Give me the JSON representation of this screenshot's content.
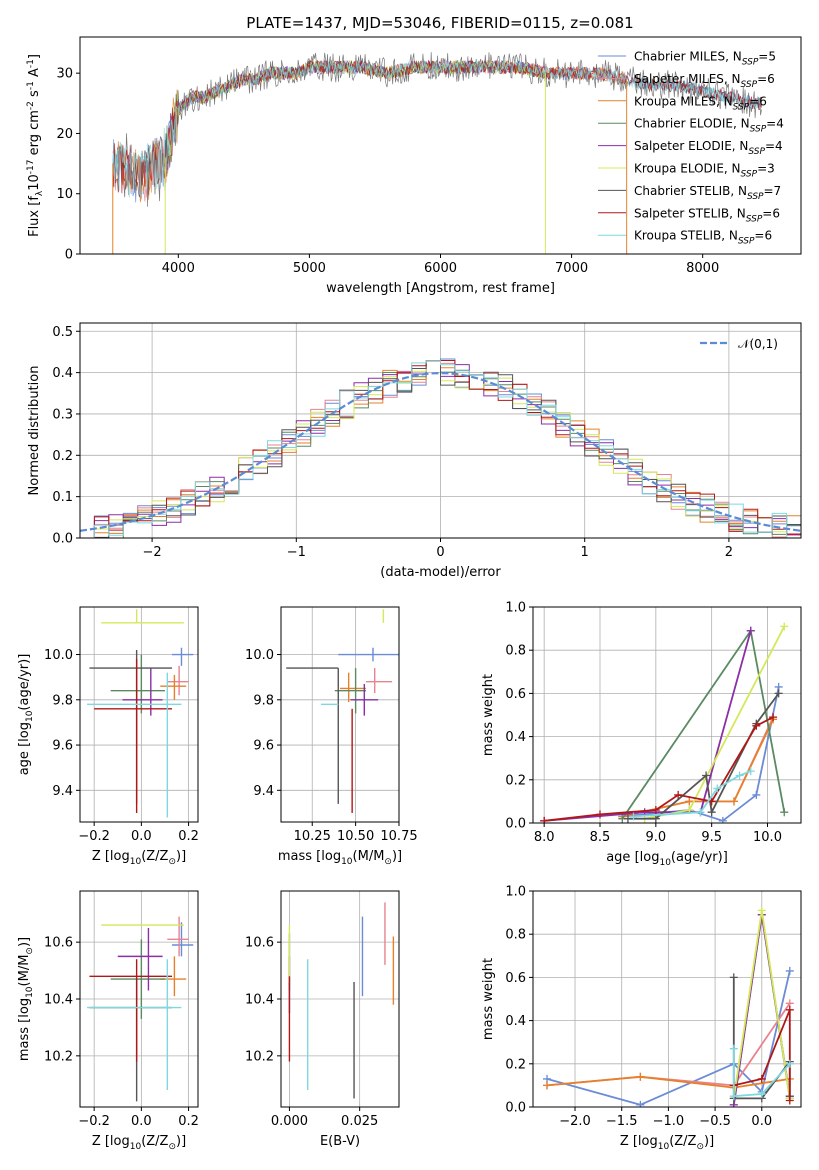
{
  "figure": {
    "title": "PLATE=1437, MJD=53046, FIBERID=0115, z=0.081"
  },
  "colors": {
    "Chabrier MILES": "#6a8bd6",
    "Salpeter MILES": "#e8838f",
    "Kroupa MILES": "#e6802a",
    "Chabrier ELODIE": "#5b8a62",
    "Salpeter ELODIE": "#8b2fa6",
    "Kroupa ELODIE": "#d4e85a",
    "Chabrier STELIB": "#555555",
    "Salpeter STELIB": "#b01818",
    "Kroupa STELIB": "#7fd8e0",
    "normal": "#5b8ad6",
    "data": "#7a7a7a"
  },
  "chart_data": [
    {
      "id": "spectrum",
      "type": "line",
      "xlabel": "wavelength [Angstrom, rest frame]",
      "ylabel": "Flux [f$_\\lambda$10$^{-17}$ erg cm$^{-2}$ s$^{-1}$ A$^{-1}$]",
      "xlim": [
        3250,
        8750
      ],
      "ylim": [
        0,
        36
      ],
      "xticks": [
        4000,
        5000,
        6000,
        7000,
        8000
      ],
      "yticks": [
        0,
        10,
        20,
        30
      ],
      "legend_position": "top-right",
      "legend": [
        {
          "model": "Chabrier MILES",
          "n_ssp": 5
        },
        {
          "model": "Salpeter MILES",
          "n_ssp": 6
        },
        {
          "model": "Kroupa MILES",
          "n_ssp": 6
        },
        {
          "model": "Chabrier ELODIE",
          "n_ssp": 4
        },
        {
          "model": "Salpeter ELODIE",
          "n_ssp": 4
        },
        {
          "model": "Kroupa ELODIE",
          "n_ssp": 3
        },
        {
          "model": "Chabrier STELIB",
          "n_ssp": 7
        },
        {
          "model": "Salpeter STELIB",
          "n_ssp": 6
        },
        {
          "model": "Kroupa STELIB",
          "n_ssp": 6
        }
      ],
      "continuum": {
        "x": [
          3500,
          3600,
          3700,
          3800,
          3900,
          4000,
          4100,
          4200,
          4300,
          4400,
          4500,
          4600,
          4700,
          4800,
          4900,
          5000,
          5200,
          5400,
          5600,
          5800,
          6000,
          6200,
          6400,
          6600,
          6800,
          7000,
          7200,
          7400,
          7600,
          7800,
          8000,
          8200,
          8400
        ],
        "y": [
          15,
          14,
          13,
          14,
          16,
          24,
          26,
          26,
          27,
          28,
          29,
          29,
          30,
          30,
          30,
          31,
          31,
          31,
          30,
          31,
          31,
          31,
          31,
          31,
          30,
          30,
          30,
          29,
          28,
          28,
          27,
          26,
          25
        ]
      },
      "model_ranges": {
        "Salpeter MILES": [
          3500,
          7420
        ],
        "Kroupa MILES": [
          3500,
          7420
        ],
        "Kroupa ELODIE": [
          3900,
          6800
        ],
        "Salpeter ELODIE": [
          3900,
          6800
        ],
        "Chabrier ELODIE": [
          3900,
          6800
        ]
      }
    },
    {
      "id": "residuals",
      "type": "line",
      "xlabel": "(data-model)/error",
      "ylabel": "Normed distribution",
      "xlim": [
        -2.5,
        2.5
      ],
      "ylim": [
        0,
        0.52
      ],
      "xticks": [
        -2,
        -1,
        0,
        1,
        2
      ],
      "yticks": [
        0.0,
        0.1,
        0.2,
        0.3,
        0.4,
        0.5
      ],
      "grid": true,
      "legend_position": "top-right",
      "legend": [
        "$\\mathcal{N}(0,1)$"
      ],
      "bin_width": 0.1
    },
    {
      "id": "age_vs_Z",
      "type": "errorbar",
      "xlabel": "Z [log$_{10}$(Z/Z$_\\odot$)]",
      "ylabel": "age  [log$_{10}$(age/yr)]",
      "xlim": [
        -0.26,
        0.24
      ],
      "ylim": [
        9.26,
        10.21
      ],
      "xticks": [
        -0.2,
        0.0,
        0.2
      ],
      "yticks": [
        9.4,
        9.6,
        9.8,
        10.0
      ],
      "grid": true,
      "points": [
        {
          "model": "Chabrier MILES",
          "x": 0.17,
          "xerr": [
            0.04,
            0.05
          ],
          "y": 10.0,
          "yerr": [
            0.05,
            0.03
          ]
        },
        {
          "model": "Salpeter MILES",
          "x": 0.16,
          "xerr": [
            0.05,
            0.04
          ],
          "y": 9.88,
          "yerr": [
            0.06,
            0.07
          ]
        },
        {
          "model": "Kroupa MILES",
          "x": 0.14,
          "xerr": [
            0.06,
            0.05
          ],
          "y": 9.86,
          "yerr": [
            0.06,
            0.05
          ]
        },
        {
          "model": "Chabrier ELODIE",
          "x": 0.0,
          "xerr": [
            0.13,
            0.1
          ],
          "y": 9.84,
          "yerr": [
            0.1,
            0.16
          ]
        },
        {
          "model": "Salpeter ELODIE",
          "x": 0.04,
          "xerr": [
            0.12,
            0.05
          ],
          "y": 9.8,
          "yerr": [
            0.07,
            0.14
          ]
        },
        {
          "model": "Kroupa ELODIE",
          "x": -0.02,
          "xerr": [
            0.15,
            0.2
          ],
          "y": 10.14,
          "yerr": [
            0.0,
            0.06
          ]
        },
        {
          "model": "Chabrier STELIB",
          "x": -0.02,
          "xerr": [
            0.2,
            0.15
          ],
          "y": 9.94,
          "yerr": [
            0.6,
            0.08
          ]
        },
        {
          "model": "Salpeter STELIB",
          "x": -0.02,
          "xerr": [
            0.18,
            0.15
          ],
          "y": 9.76,
          "yerr": [
            0.46,
            0.22
          ]
        },
        {
          "model": "Kroupa STELIB",
          "x": 0.11,
          "xerr": [
            0.34,
            0.06
          ],
          "y": 9.78,
          "yerr": [
            0.5,
            0.14
          ]
        }
      ]
    },
    {
      "id": "age_vs_mass",
      "type": "errorbar",
      "xlabel": "mass [log$_{10}$(M/M$_\\odot$)]",
      "ylabel": "",
      "xlim": [
        10.07,
        10.75
      ],
      "ylim": [
        9.26,
        10.21
      ],
      "xticks": [
        10.25,
        10.5,
        10.75
      ],
      "yticks": [
        9.4,
        9.6,
        9.8,
        10.0
      ],
      "grid": true,
      "points": [
        {
          "model": "Chabrier MILES",
          "x": 10.6,
          "xerr": [
            0.2,
            0.2
          ],
          "y": 10.0,
          "yerr": [
            0.03,
            0.03
          ]
        },
        {
          "model": "Salpeter MILES",
          "x": 10.61,
          "xerr": [
            0.05,
            0.1
          ],
          "y": 9.88,
          "yerr": [
            0.05,
            0.06
          ]
        },
        {
          "model": "Kroupa MILES",
          "x": 10.46,
          "xerr": [
            0.05,
            0.1
          ],
          "y": 9.85,
          "yerr": [
            0.06,
            0.07
          ]
        },
        {
          "model": "Chabrier ELODIE",
          "x": 10.5,
          "xerr": [
            0.12,
            0.06
          ],
          "y": 9.84,
          "yerr": [
            0.1,
            0.1
          ]
        },
        {
          "model": "Salpeter ELODIE",
          "x": 10.55,
          "xerr": [
            0.08,
            0.08
          ],
          "y": 9.8,
          "yerr": [
            0.07,
            0.07
          ]
        },
        {
          "model": "Kroupa ELODIE",
          "x": 10.66,
          "xerr": [
            0.0,
            0.0
          ],
          "y": 10.14,
          "yerr": [
            0.0,
            0.06
          ]
        },
        {
          "model": "Chabrier STELIB",
          "x": 10.4,
          "xerr": [
            0.3,
            0.0
          ],
          "y": 9.94,
          "yerr": [
            0.6,
            0.0
          ]
        },
        {
          "model": "Salpeter STELIB",
          "x": 10.48,
          "xerr": [
            0.0,
            0.0
          ],
          "y": 9.76,
          "yerr": [
            0.46,
            0.0
          ]
        },
        {
          "model": "Kroupa STELIB",
          "x": 10.3,
          "xerr": [
            0.0,
            0.1
          ],
          "y": 9.78,
          "yerr": [
            0.0,
            0.0
          ]
        }
      ]
    },
    {
      "id": "mass_weight_vs_age",
      "type": "line",
      "xlabel": "age  [log$_{10}$(age/yr)]",
      "ylabel": "mass weight",
      "xlim": [
        7.9,
        10.3
      ],
      "ylim": [
        0,
        1.0
      ],
      "xticks": [
        8.0,
        8.5,
        9.0,
        9.5,
        10.0
      ],
      "yticks": [
        0.0,
        0.2,
        0.4,
        0.6,
        0.8,
        1.0
      ],
      "grid": true,
      "series": [
        {
          "model": "Chabrier MILES",
          "x": [
            8.7,
            9.3,
            9.6,
            9.9,
            10.1
          ],
          "y": [
            0.03,
            0.06,
            0.01,
            0.13,
            0.63
          ]
        },
        {
          "model": "Salpeter MILES",
          "x": [
            8.7,
            9.3,
            9.7,
            10.05
          ],
          "y": [
            0.03,
            0.1,
            0.1,
            0.49
          ]
        },
        {
          "model": "Kroupa MILES",
          "x": [
            8.7,
            9.3,
            9.7,
            10.05
          ],
          "y": [
            0.03,
            0.1,
            0.1,
            0.48
          ]
        },
        {
          "model": "Chabrier ELODIE",
          "x": [
            8.7,
            9.85,
            10.15
          ],
          "y": [
            0.02,
            0.89,
            0.05
          ]
        },
        {
          "model": "Salpeter ELODIE",
          "x": [
            8.0,
            8.9,
            9.4,
            9.85
          ],
          "y": [
            0.01,
            0.05,
            0.05,
            0.89
          ]
        },
        {
          "model": "Kroupa ELODIE",
          "x": [
            8.9,
            9.3,
            10.15
          ],
          "y": [
            0.02,
            0.06,
            0.91
          ]
        },
        {
          "model": "Chabrier STELIB",
          "x": [
            8.75,
            9.0,
            9.45,
            9.5,
            9.9,
            10.1
          ],
          "y": [
            0.02,
            0.02,
            0.22,
            0.05,
            0.46,
            0.6
          ]
        },
        {
          "model": "Salpeter STELIB",
          "x": [
            8.0,
            8.5,
            9.0,
            9.2,
            9.5,
            9.9,
            10.05
          ],
          "y": [
            0.01,
            0.04,
            0.06,
            0.13,
            0.1,
            0.45,
            0.49
          ]
        },
        {
          "model": "Kroupa STELIB",
          "x": [
            8.8,
            9.4,
            9.55,
            9.75,
            9.85
          ],
          "y": [
            0.03,
            0.05,
            0.16,
            0.22,
            0.24
          ]
        }
      ]
    },
    {
      "id": "mass_vs_Z",
      "type": "errorbar",
      "xlabel": "Z [log$_{10}$(Z/Z$_\\odot$)]",
      "ylabel": "mass [log$_{10}$(M/M$_\\odot$)]",
      "xlim": [
        -0.26,
        0.24
      ],
      "ylim": [
        10.02,
        10.78
      ],
      "xticks": [
        -0.2,
        0.0,
        0.2
      ],
      "yticks": [
        10.2,
        10.4,
        10.6
      ],
      "grid": true,
      "points": [
        {
          "model": "Chabrier MILES",
          "x": 0.17,
          "xerr": [
            0.04,
            0.05
          ],
          "y": 10.59,
          "yerr": [
            0.04,
            0.08
          ]
        },
        {
          "model": "Salpeter MILES",
          "x": 0.16,
          "xerr": [
            0.05,
            0.04
          ],
          "y": 10.61,
          "yerr": [
            0.06,
            0.08
          ]
        },
        {
          "model": "Kroupa MILES",
          "x": 0.14,
          "xerr": [
            0.06,
            0.05
          ],
          "y": 10.47,
          "yerr": [
            0.06,
            0.08
          ]
        },
        {
          "model": "Chabrier ELODIE",
          "x": 0.0,
          "xerr": [
            0.13,
            0.1
          ],
          "y": 10.47,
          "yerr": [
            0.14,
            0.14
          ]
        },
        {
          "model": "Salpeter ELODIE",
          "x": 0.03,
          "xerr": [
            0.13,
            0.06
          ],
          "y": 10.55,
          "yerr": [
            0.12,
            0.1
          ]
        },
        {
          "model": "Kroupa ELODIE",
          "x": -0.02,
          "xerr": [
            0.15,
            0.2
          ],
          "y": 10.66,
          "yerr": [
            0.0,
            0.0
          ]
        },
        {
          "model": "Chabrier STELIB",
          "x": -0.02,
          "xerr": [
            0.2,
            0.15
          ],
          "y": 10.37,
          "yerr": [
            0.33,
            0.1
          ]
        },
        {
          "model": "Salpeter STELIB",
          "x": -0.02,
          "xerr": [
            0.2,
            0.15
          ],
          "y": 10.48,
          "yerr": [
            0.3,
            0.06
          ]
        },
        {
          "model": "Kroupa STELIB",
          "x": 0.11,
          "xerr": [
            0.34,
            0.06
          ],
          "y": 10.37,
          "yerr": [
            0.29,
            0.17
          ]
        }
      ]
    },
    {
      "id": "mass_vs_EBV",
      "type": "errorbar",
      "xlabel": "E(B-V)",
      "ylabel": "",
      "xlim": [
        -0.003,
        0.039
      ],
      "ylim": [
        10.02,
        10.78
      ],
      "xticks": [
        0.0,
        0.025
      ],
      "yticks": [
        10.2,
        10.4,
        10.6
      ],
      "grid": true,
      "points": [
        {
          "model": "Chabrier MILES",
          "x": 0.026,
          "y": 10.55,
          "yerr": [
            0.14,
            0.14
          ]
        },
        {
          "model": "Salpeter MILES",
          "x": 0.034,
          "y": 10.62,
          "yerr": [
            0.1,
            0.12
          ]
        },
        {
          "model": "Kroupa MILES",
          "x": 0.037,
          "y": 10.5,
          "yerr": [
            0.12,
            0.12
          ]
        },
        {
          "model": "Chabrier ELODIE",
          "x": 0.0,
          "y": 10.53,
          "yerr": [
            0.1,
            0.1
          ]
        },
        {
          "model": "Salpeter ELODIE",
          "x": 0.0,
          "y": 10.45,
          "yerr": [
            0.1,
            0.1
          ]
        },
        {
          "model": "Kroupa ELODIE",
          "x": 0.0,
          "y": 10.56,
          "yerr": [
            0.1,
            0.1
          ]
        },
        {
          "model": "Chabrier STELIB",
          "x": 0.023,
          "y": 10.25,
          "yerr": [
            0.2,
            0.21
          ]
        },
        {
          "model": "Salpeter STELIB",
          "x": 0.0,
          "y": 10.33,
          "yerr": [
            0.15,
            0.15
          ]
        },
        {
          "model": "Kroupa STELIB",
          "x": 0.0065,
          "y": 10.28,
          "yerr": [
            0.2,
            0.26
          ]
        }
      ]
    },
    {
      "id": "mass_weight_vs_Z",
      "type": "line",
      "xlabel": "Z [log$_{10}$(Z/Z$_\\odot$)]",
      "ylabel": "mass weight",
      "xlim": [
        -2.45,
        0.42
      ],
      "ylim": [
        0,
        1.0
      ],
      "xticks": [
        -2.0,
        -1.5,
        -1.0,
        -0.5,
        0.0
      ],
      "yticks": [
        0.0,
        0.2,
        0.4,
        0.6,
        0.8,
        1.0
      ],
      "grid": true,
      "series": [
        {
          "model": "Chabrier MILES",
          "x": [
            -2.3,
            -1.3,
            -0.3,
            0.0,
            0.3
          ],
          "y": [
            0.13,
            0.01,
            0.2,
            0.07,
            0.63
          ]
        },
        {
          "model": "Salpeter MILES",
          "x": [
            -2.3,
            -1.3,
            -0.3,
            0.3
          ],
          "y": [
            0.1,
            0.14,
            0.1,
            0.48
          ]
        },
        {
          "model": "Kroupa MILES",
          "x": [
            -2.3,
            -1.3,
            -0.3,
            0.3
          ],
          "y": [
            0.1,
            0.14,
            0.09,
            0.13
          ]
        },
        {
          "model": "Chabrier ELODIE",
          "x": [
            -0.3,
            0.0,
            0.3
          ],
          "y": [
            0.01,
            0.89,
            0.04
          ]
        },
        {
          "model": "Salpeter ELODIE",
          "x": [
            -0.3,
            0.0,
            0.3
          ],
          "y": [
            0.01,
            0.89,
            0.05
          ]
        },
        {
          "model": "Kroupa ELODIE",
          "x": [
            -0.3,
            0.0,
            0.3
          ],
          "y": [
            0.04,
            0.91,
            0.04
          ]
        },
        {
          "model": "Chabrier STELIB",
          "x": [
            -0.3,
            -0.3,
            0.0,
            0.3,
            0.3
          ],
          "y": [
            0.6,
            0.04,
            0.04,
            0.21,
            0.05
          ]
        },
        {
          "model": "Salpeter STELIB",
          "x": [
            -0.3,
            0.0,
            0.3,
            0.3
          ],
          "y": [
            0.1,
            0.13,
            0.45,
            0.03
          ]
        },
        {
          "model": "Kroupa STELIB",
          "x": [
            -0.3,
            -0.3,
            0.0,
            0.3
          ],
          "y": [
            0.27,
            0.05,
            0.06,
            0.2
          ]
        }
      ]
    }
  ]
}
